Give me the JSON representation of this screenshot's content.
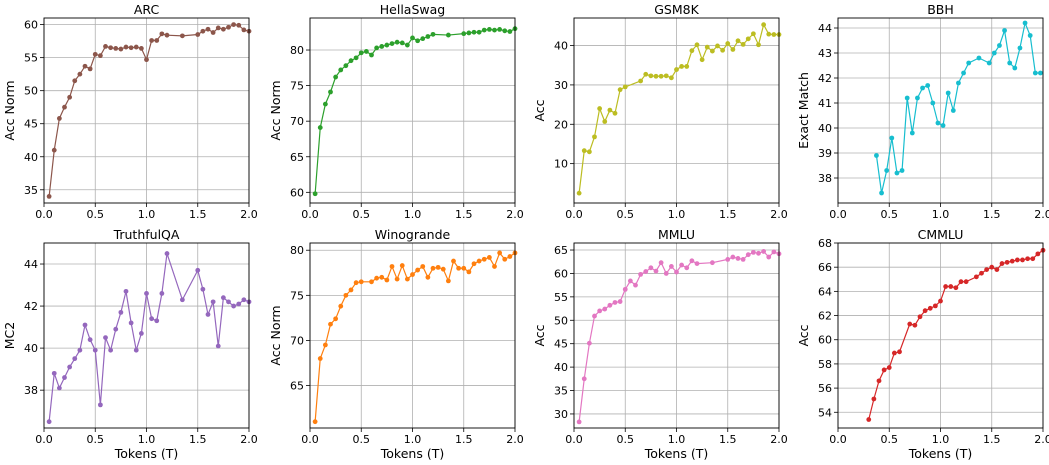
{
  "chart_data": [
    {
      "type": "line",
      "title": "ARC",
      "xlabel": "",
      "ylabel": "Acc Norm",
      "xlim": [
        0,
        2
      ],
      "ylim": [
        33,
        61
      ],
      "xticks": [
        0.0,
        0.5,
        1.0,
        1.5,
        2.0
      ],
      "yticks": [
        35,
        40,
        45,
        50,
        55,
        60
      ],
      "color": "#8c564b",
      "grid": true,
      "series": [
        {
          "x": [
            0.05,
            0.1,
            0.15,
            0.2,
            0.25,
            0.3,
            0.35,
            0.4,
            0.45,
            0.5,
            0.55,
            0.6,
            0.65,
            0.7,
            0.75,
            0.8,
            0.85,
            0.9,
            0.95,
            1.0,
            1.05,
            1.1,
            1.15,
            1.2,
            1.35,
            1.5,
            1.55,
            1.6,
            1.65,
            1.7,
            1.75,
            1.8,
            1.85,
            1.9,
            1.95,
            2.0
          ],
          "y": [
            34.0,
            41.0,
            45.8,
            47.5,
            49.0,
            51.5,
            52.5,
            53.7,
            53.3,
            55.5,
            55.3,
            56.7,
            56.5,
            56.4,
            56.3,
            56.6,
            56.5,
            56.6,
            56.4,
            54.7,
            57.6,
            57.6,
            58.6,
            58.4,
            58.3,
            58.5,
            59.0,
            59.3,
            58.8,
            59.5,
            59.3,
            59.6,
            60.0,
            59.9,
            59.2,
            59.0
          ]
        }
      ]
    },
    {
      "type": "line",
      "title": "HellaSwag",
      "xlabel": "",
      "ylabel": "Acc Norm",
      "xlim": [
        0,
        2
      ],
      "ylim": [
        58.5,
        84.5
      ],
      "xticks": [
        0.0,
        0.5,
        1.0,
        1.5,
        2.0
      ],
      "yticks": [
        60,
        65,
        70,
        75,
        80
      ],
      "color": "#2ca02c",
      "grid": true,
      "series": [
        {
          "x": [
            0.05,
            0.1,
            0.15,
            0.2,
            0.25,
            0.3,
            0.35,
            0.4,
            0.45,
            0.5,
            0.55,
            0.6,
            0.65,
            0.7,
            0.75,
            0.8,
            0.85,
            0.9,
            0.95,
            1.0,
            1.05,
            1.1,
            1.15,
            1.2,
            1.35,
            1.5,
            1.55,
            1.6,
            1.65,
            1.7,
            1.75,
            1.8,
            1.85,
            1.9,
            1.95,
            2.0
          ],
          "y": [
            59.8,
            69.1,
            72.4,
            74.1,
            76.2,
            77.2,
            77.8,
            78.5,
            78.9,
            79.6,
            79.8,
            79.3,
            80.3,
            80.5,
            80.7,
            80.9,
            81.1,
            81.0,
            80.7,
            81.7,
            81.3,
            81.6,
            81.9,
            82.2,
            82.1,
            82.3,
            82.4,
            82.5,
            82.5,
            82.8,
            82.9,
            82.8,
            82.9,
            82.7,
            82.6,
            83.0
          ]
        }
      ]
    },
    {
      "type": "line",
      "title": "GSM8K",
      "xlabel": "",
      "ylabel": "Acc",
      "xlim": [
        0,
        2
      ],
      "ylim": [
        0,
        47
      ],
      "xticks": [
        0.0,
        0.5,
        1.0,
        1.5,
        2.0
      ],
      "yticks": [
        10,
        20,
        30,
        40
      ],
      "color": "#bcbd22",
      "grid": true,
      "series": [
        {
          "x": [
            0.05,
            0.1,
            0.15,
            0.2,
            0.25,
            0.3,
            0.35,
            0.4,
            0.45,
            0.5,
            0.65,
            0.7,
            0.75,
            0.8,
            0.85,
            0.9,
            0.95,
            1.0,
            1.05,
            1.1,
            1.15,
            1.2,
            1.25,
            1.3,
            1.35,
            1.4,
            1.45,
            1.5,
            1.55,
            1.6,
            1.65,
            1.7,
            1.75,
            1.8,
            1.85,
            1.9,
            1.95,
            2.0
          ],
          "y": [
            2.5,
            13.3,
            13.0,
            16.8,
            24.0,
            20.7,
            23.6,
            22.8,
            28.8,
            29.5,
            31.0,
            32.7,
            32.3,
            32.2,
            32.2,
            32.3,
            31.8,
            33.9,
            34.7,
            34.7,
            38.7,
            40.2,
            36.4,
            39.6,
            38.6,
            39.9,
            38.8,
            40.5,
            39.0,
            41.2,
            40.3,
            41.7,
            43.0,
            40.2,
            45.3,
            42.9,
            42.8,
            42.8
          ]
        }
      ]
    },
    {
      "type": "line",
      "title": "BBH",
      "xlabel": "",
      "ylabel": "Exact Match",
      "xlim": [
        0,
        2
      ],
      "ylim": [
        37.0,
        44.4
      ],
      "xticks": [
        0.0,
        0.5,
        1.0,
        1.5,
        2.0
      ],
      "yticks": [
        38,
        39,
        40,
        41,
        42,
        43,
        44
      ],
      "color": "#17becf",
      "grid": true,
      "series": [
        {
          "x": [
            0.375,
            0.425,
            0.475,
            0.525,
            0.575,
            0.625,
            0.675,
            0.725,
            0.775,
            0.825,
            0.875,
            0.925,
            0.975,
            1.025,
            1.075,
            1.125,
            1.175,
            1.225,
            1.275,
            1.375,
            1.475,
            1.525,
            1.575,
            1.625,
            1.675,
            1.725,
            1.775,
            1.825,
            1.875,
            1.925,
            1.975
          ],
          "y": [
            38.9,
            37.4,
            38.3,
            39.6,
            38.2,
            38.3,
            41.2,
            39.8,
            41.2,
            41.6,
            41.7,
            41.0,
            40.2,
            40.1,
            41.4,
            40.7,
            41.8,
            42.2,
            42.6,
            42.8,
            42.6,
            43.0,
            43.3,
            43.9,
            42.6,
            42.4,
            43.2,
            44.2,
            43.7,
            42.2,
            42.2
          ]
        }
      ]
    },
    {
      "type": "line",
      "title": "TruthfulQA",
      "xlabel": "Tokens (T)",
      "ylabel": "MC2",
      "xlim": [
        0,
        2
      ],
      "ylim": [
        36.2,
        45.0
      ],
      "xticks": [
        0.0,
        0.5,
        1.0,
        1.5,
        2.0
      ],
      "yticks": [
        38,
        40,
        42,
        44
      ],
      "color": "#9467bd",
      "grid": true,
      "series": [
        {
          "x": [
            0.05,
            0.1,
            0.15,
            0.2,
            0.25,
            0.3,
            0.35,
            0.4,
            0.45,
            0.5,
            0.55,
            0.6,
            0.65,
            0.7,
            0.75,
            0.8,
            0.85,
            0.9,
            0.95,
            1.0,
            1.05,
            1.1,
            1.15,
            1.2,
            1.35,
            1.5,
            1.55,
            1.6,
            1.65,
            1.7,
            1.75,
            1.8,
            1.85,
            1.9,
            1.95,
            2.0
          ],
          "y": [
            36.5,
            38.8,
            38.1,
            38.6,
            39.1,
            39.5,
            39.9,
            41.1,
            40.4,
            39.9,
            37.3,
            40.5,
            39.9,
            40.9,
            41.7,
            42.7,
            41.2,
            39.9,
            40.7,
            42.6,
            41.4,
            41.3,
            42.6,
            44.5,
            42.3,
            43.7,
            42.8,
            41.6,
            42.2,
            40.1,
            42.4,
            42.2,
            42.0,
            42.1,
            42.3,
            42.2
          ]
        }
      ]
    },
    {
      "type": "line",
      "title": "Winogrande",
      "xlabel": "Tokens (T)",
      "ylabel": "Acc Norm",
      "xlim": [
        0,
        2
      ],
      "ylim": [
        60.3,
        80.8
      ],
      "xticks": [
        0.0,
        0.5,
        1.0,
        1.5,
        2.0
      ],
      "yticks": [
        65,
        70,
        75,
        80
      ],
      "color": "#ff7f0e",
      "grid": true,
      "series": [
        {
          "x": [
            0.05,
            0.1,
            0.15,
            0.2,
            0.25,
            0.3,
            0.35,
            0.4,
            0.45,
            0.5,
            0.6,
            0.65,
            0.7,
            0.75,
            0.8,
            0.85,
            0.9,
            0.95,
            1.0,
            1.05,
            1.1,
            1.15,
            1.2,
            1.25,
            1.3,
            1.35,
            1.4,
            1.45,
            1.5,
            1.55,
            1.6,
            1.65,
            1.7,
            1.75,
            1.8,
            1.85,
            1.9,
            1.95,
            2.0
          ],
          "y": [
            61.0,
            68.0,
            69.5,
            71.8,
            72.4,
            73.8,
            75.0,
            75.6,
            76.4,
            76.5,
            76.5,
            76.9,
            77.0,
            76.7,
            78.2,
            76.8,
            78.3,
            76.8,
            77.3,
            77.8,
            78.2,
            77.0,
            78.0,
            78.1,
            77.9,
            76.6,
            78.8,
            78.0,
            78.0,
            77.6,
            78.5,
            78.8,
            79.0,
            79.2,
            78.2,
            79.7,
            79.0,
            79.3,
            79.7
          ]
        }
      ]
    },
    {
      "type": "line",
      "title": "MMLU",
      "xlabel": "Tokens (T)",
      "ylabel": "Acc",
      "xlim": [
        0,
        2
      ],
      "ylim": [
        27,
        66.5
      ],
      "xticks": [
        0.0,
        0.5,
        1.0,
        1.5,
        2.0
      ],
      "yticks": [
        30,
        35,
        40,
        45,
        50,
        55,
        60,
        65
      ],
      "color": "#e377c2",
      "grid": true,
      "series": [
        {
          "x": [
            0.05,
            0.1,
            0.15,
            0.2,
            0.25,
            0.3,
            0.35,
            0.4,
            0.45,
            0.5,
            0.55,
            0.6,
            0.65,
            0.7,
            0.75,
            0.8,
            0.85,
            0.9,
            0.95,
            1.0,
            1.05,
            1.1,
            1.15,
            1.2,
            1.35,
            1.5,
            1.55,
            1.6,
            1.65,
            1.7,
            1.75,
            1.8,
            1.85,
            1.9,
            1.95,
            2.0
          ],
          "y": [
            28.3,
            37.5,
            45.1,
            50.9,
            52.0,
            52.4,
            53.2,
            53.8,
            54.0,
            56.6,
            58.4,
            57.5,
            59.8,
            60.4,
            61.2,
            60.5,
            62.3,
            60.0,
            61.5,
            60.3,
            61.8,
            61.2,
            62.7,
            62.1,
            62.3,
            63.0,
            63.5,
            63.2,
            63.0,
            64.0,
            64.5,
            64.3,
            64.7,
            63.5,
            64.6,
            64.2
          ]
        }
      ]
    },
    {
      "type": "line",
      "title": "CMMLU",
      "xlabel": "Tokens (T)",
      "ylabel": "Acc",
      "xlim": [
        0,
        2
      ],
      "ylim": [
        52.7,
        68.0
      ],
      "xticks": [
        0.0,
        0.5,
        1.0,
        1.5,
        2.0
      ],
      "yticks": [
        54,
        56,
        58,
        60,
        62,
        64,
        66,
        68
      ],
      "color": "#d62728",
      "grid": true,
      "series": [
        {
          "x": [
            0.3,
            0.35,
            0.4,
            0.45,
            0.5,
            0.55,
            0.6,
            0.7,
            0.75,
            0.8,
            0.85,
            0.9,
            0.95,
            1.0,
            1.05,
            1.1,
            1.15,
            1.2,
            1.25,
            1.35,
            1.4,
            1.45,
            1.5,
            1.55,
            1.6,
            1.65,
            1.7,
            1.75,
            1.8,
            1.85,
            1.9,
            1.95,
            2.0
          ],
          "y": [
            53.4,
            55.1,
            56.6,
            57.5,
            57.7,
            58.9,
            59.0,
            61.3,
            61.2,
            61.9,
            62.4,
            62.6,
            62.8,
            63.2,
            64.4,
            64.4,
            64.3,
            64.8,
            64.8,
            65.2,
            65.5,
            65.8,
            66.0,
            65.8,
            66.3,
            66.4,
            66.5,
            66.6,
            66.6,
            66.7,
            66.7,
            67.1,
            67.4
          ]
        }
      ]
    }
  ]
}
